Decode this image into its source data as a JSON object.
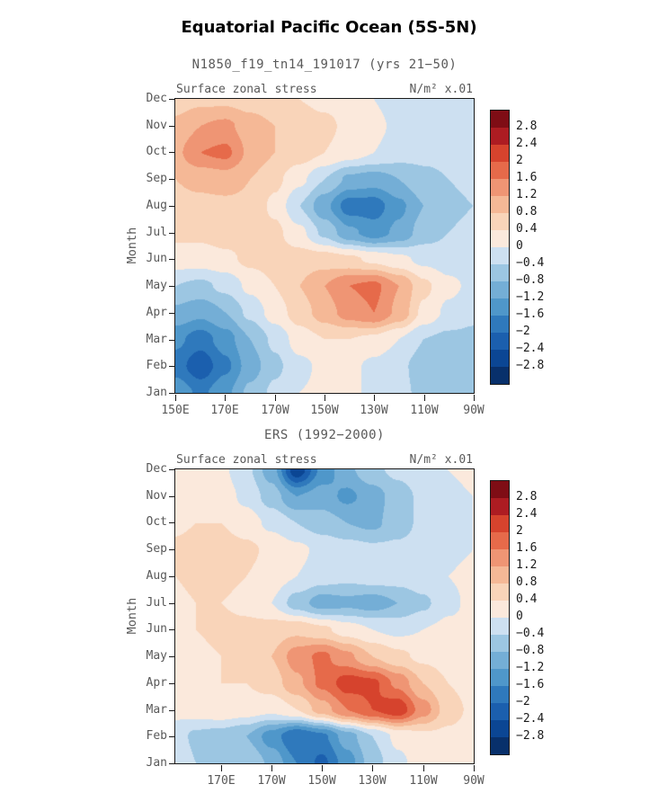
{
  "page": {
    "title": "Equatorial Pacific Ocean (5S-5N)",
    "background": "#ffffff"
  },
  "colorbar": {
    "tick_labels": [
      "2.8",
      "2.4",
      "2",
      "1.6",
      "1.2",
      "0.8",
      "0.4",
      "0",
      "−0.4",
      "−0.8",
      "−1.2",
      "−1.6",
      "−2",
      "−2.4",
      "−2.8"
    ],
    "levels": [
      -2.8,
      -2.4,
      -2,
      -1.6,
      -1.2,
      -0.8,
      -0.4,
      0,
      0.4,
      0.8,
      1.2,
      1.6,
      2,
      2.4,
      2.8
    ],
    "colors_low_to_high": [
      "#08306b",
      "#0b4694",
      "#1b5fae",
      "#2f79bc",
      "#4f97ca",
      "#74aed6",
      "#9cc6e2",
      "#cde0f1",
      "#fbe9dc",
      "#f9d4b9",
      "#f5b896",
      "#ef9574",
      "#e66a4a",
      "#d6432d",
      "#ad1c22",
      "#7f0d15"
    ]
  },
  "chart_data": [
    {
      "type": "heatmap",
      "title": "N1850_f19_tn14_191017 (yrs 21−50)",
      "inner_title_left": "Surface zonal stress",
      "inner_title_right": "N/m² x.01",
      "ylabel": "Month",
      "units": "N/m² x.01",
      "contour_interval": 0.4,
      "value_range": [
        -2.8,
        2.8
      ],
      "x_domain": [
        150,
        270
      ],
      "x_ticks": [
        "150E",
        "170E",
        "170W",
        "150W",
        "130W",
        "110W",
        "90W"
      ],
      "x_tick_lons": [
        150,
        170,
        190,
        210,
        230,
        250,
        270
      ],
      "y_categories": [
        "Jan",
        "Feb",
        "Mar",
        "Apr",
        "May",
        "Jun",
        "Jul",
        "Aug",
        "Sep",
        "Oct",
        "Nov",
        "Dec"
      ],
      "columns_lon": [
        150,
        160,
        170,
        180,
        190,
        200,
        210,
        220,
        230,
        240,
        250,
        260,
        270
      ],
      "rows": [
        [
          -1.3,
          -1.7,
          -1.3,
          -0.7,
          -0.3,
          0.0,
          0.1,
          0.1,
          -0.1,
          -0.3,
          -0.5,
          -0.5,
          -0.5
        ],
        [
          -1.8,
          -2.3,
          -1.7,
          -1.0,
          -0.5,
          -0.1,
          0.1,
          0.1,
          -0.1,
          -0.3,
          -0.6,
          -0.6,
          -0.6
        ],
        [
          -1.5,
          -1.8,
          -1.4,
          -0.8,
          -0.3,
          0.2,
          0.4,
          0.4,
          0.3,
          0.0,
          -0.4,
          -0.5,
          -0.5
        ],
        [
          -0.9,
          -1.1,
          -0.8,
          -0.3,
          0.2,
          0.6,
          1.0,
          1.4,
          1.6,
          1.1,
          0.3,
          -0.1,
          -0.3
        ],
        [
          -0.4,
          -0.5,
          -0.3,
          0.1,
          0.4,
          0.8,
          1.2,
          1.6,
          1.7,
          1.2,
          0.5,
          0.1,
          -0.1
        ],
        [
          0.2,
          0.2,
          0.3,
          0.5,
          0.6,
          0.6,
          0.6,
          0.5,
          0.3,
          0.1,
          -0.1,
          -0.2,
          -0.2
        ],
        [
          0.5,
          0.5,
          0.6,
          0.6,
          0.5,
          0.1,
          -0.5,
          -1.1,
          -1.4,
          -1.1,
          -0.6,
          -0.4,
          -0.3
        ],
        [
          0.7,
          0.7,
          0.7,
          0.7,
          0.3,
          -0.4,
          -1.1,
          -1.8,
          -1.8,
          -1.3,
          -0.8,
          -0.5,
          -0.4
        ],
        [
          0.8,
          0.9,
          1.0,
          0.8,
          0.5,
          0.1,
          -0.4,
          -0.9,
          -1.0,
          -0.8,
          -0.5,
          -0.4,
          -0.3
        ],
        [
          1.1,
          1.6,
          1.7,
          1.1,
          0.8,
          0.6,
          0.4,
          0.2,
          0.0,
          -0.2,
          -0.3,
          -0.3,
          -0.3
        ],
        [
          0.9,
          1.2,
          1.3,
          1.0,
          0.8,
          0.6,
          0.5,
          0.3,
          0.1,
          -0.1,
          -0.3,
          -0.3,
          -0.3
        ],
        [
          0.6,
          0.7,
          0.7,
          0.6,
          0.5,
          0.4,
          0.3,
          0.2,
          0.0,
          -0.2,
          -0.3,
          -0.4,
          -0.4
        ]
      ]
    },
    {
      "type": "heatmap",
      "title": "ERS (1992−2000)",
      "inner_title_left": "Surface zonal stress",
      "inner_title_right": "N/m² x.01",
      "ylabel": "Month",
      "units": "N/m² x.01",
      "contour_interval": 0.4,
      "value_range": [
        -2.8,
        2.8
      ],
      "x_domain": [
        152,
        270
      ],
      "x_ticks": [
        "170E",
        "170W",
        "150W",
        "130W",
        "110W",
        "90W"
      ],
      "x_tick_lons": [
        170,
        190,
        210,
        230,
        250,
        270
      ],
      "y_categories": [
        "Jan",
        "Feb",
        "Mar",
        "Apr",
        "May",
        "Jun",
        "Jul",
        "Aug",
        "Sep",
        "Oct",
        "Nov",
        "Dec"
      ],
      "columns_lon": [
        152,
        160,
        170,
        180,
        190,
        200,
        210,
        220,
        230,
        240,
        250,
        260,
        270
      ],
      "rows": [
        [
          0.0,
          -0.4,
          -0.5,
          -0.4,
          -0.9,
          -1.6,
          -2.1,
          -1.4,
          -0.6,
          -0.1,
          0.2,
          0.3,
          0.3
        ],
        [
          -0.2,
          -0.5,
          -0.6,
          -0.8,
          -1.4,
          -2.0,
          -1.7,
          -1.0,
          -0.4,
          0.1,
          0.3,
          0.3,
          0.2
        ],
        [
          0.1,
          0.2,
          0.3,
          0.2,
          0.1,
          0.4,
          1.0,
          1.6,
          2.0,
          2.3,
          1.4,
          0.6,
          0.3
        ],
        [
          0.2,
          0.3,
          0.4,
          0.4,
          0.6,
          1.1,
          1.7,
          2.2,
          2.1,
          1.5,
          0.8,
          0.4,
          0.2
        ],
        [
          0.2,
          0.3,
          0.4,
          0.5,
          0.8,
          1.4,
          1.7,
          1.3,
          0.8,
          0.5,
          0.3,
          0.2,
          0.1
        ],
        [
          0.3,
          0.4,
          0.5,
          0.5,
          0.6,
          0.7,
          0.5,
          0.2,
          0.0,
          -0.1,
          0.0,
          0.1,
          0.1
        ],
        [
          0.3,
          0.4,
          0.4,
          0.3,
          0.0,
          -0.6,
          -1.0,
          -0.9,
          -1.0,
          -0.8,
          -0.5,
          -0.1,
          0.1
        ],
        [
          0.4,
          0.5,
          0.5,
          0.4,
          0.2,
          0.0,
          -0.2,
          -0.3,
          -0.2,
          -0.2,
          -0.1,
          0.0,
          0.1
        ],
        [
          0.5,
          0.6,
          0.6,
          0.5,
          0.3,
          0.1,
          -0.1,
          -0.2,
          -0.3,
          -0.3,
          -0.2,
          -0.1,
          0.0
        ],
        [
          0.3,
          0.4,
          0.4,
          0.2,
          -0.1,
          -0.4,
          -0.6,
          -0.8,
          -0.9,
          -0.6,
          -0.3,
          -0.1,
          0.0
        ],
        [
          0.2,
          0.3,
          0.2,
          -0.1,
          -0.6,
          -1.2,
          -1.0,
          -1.3,
          -1.0,
          -0.6,
          -0.3,
          -0.1,
          0.0
        ],
        [
          0.2,
          0.2,
          0.1,
          -0.3,
          -1.0,
          -2.7,
          -1.5,
          -0.9,
          -0.5,
          -0.3,
          -0.1,
          0.0,
          0.1
        ]
      ]
    }
  ]
}
